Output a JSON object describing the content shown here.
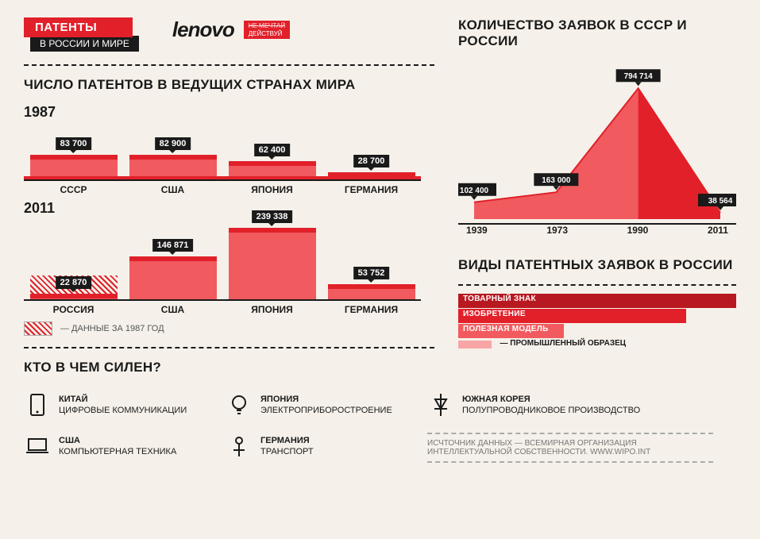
{
  "header": {
    "badge_top": "ПАТЕНТЫ",
    "badge_bottom": "В РОССИИ И МИРЕ",
    "logo": "lenovo",
    "tagline_top": "НЕ МЕЧТАЙ",
    "tagline_bottom": "ДЕЙСТВУЙ"
  },
  "colors": {
    "accent": "#e1202a",
    "accent_light": "#f15a5e",
    "ink": "#1a1a1a",
    "bg": "#f5f1ea"
  },
  "patents_chart": {
    "title": "ЧИСЛО ПАТЕНТОВ В ВЕДУЩИХ СТРАНАХ МИРА",
    "year_a": "1987",
    "year_b": "2011",
    "categories_a": [
      "СССР",
      "США",
      "ЯПОНИЯ",
      "ГЕРМАНИЯ"
    ],
    "categories_b": [
      "РОССИЯ",
      "США",
      "ЯПОНИЯ",
      "ГЕРМАНИЯ"
    ],
    "values_a": [
      83700,
      82900,
      62400,
      28700
    ],
    "values_b": [
      22870,
      146871,
      239338,
      53752
    ],
    "labels_a": [
      "83 700",
      "82 900",
      "62 400",
      "28 700"
    ],
    "labels_b": [
      "22 870",
      "146 871",
      "239 338",
      "53 752"
    ],
    "max_a": 100000,
    "max_b": 260000,
    "bar_width_pct": 22,
    "legend_text": "— ДАННЫЕ ЗА 1987 ГОД"
  },
  "applications_chart": {
    "title": "КОЛИЧЕСТВО ЗАЯВОК В СССР И РОССИИ",
    "years": [
      "1939",
      "1973",
      "1990",
      "2011"
    ],
    "values": [
      102400,
      163000,
      794714,
      38564
    ],
    "labels": [
      "102 400",
      "163 000",
      "794 714",
      "38 564"
    ],
    "max": 820000,
    "fill_colors": [
      "#f15a5e",
      "#e1202a"
    ]
  },
  "types": {
    "title": "ВИДЫ ПАТЕНТНЫХ ЗАЯВОК В РОССИИ",
    "items": [
      {
        "label": "ТОВАРНЫЙ ЗНАК",
        "width_pct": 100,
        "color": "#b81820"
      },
      {
        "label": "ИЗОБРЕТЕНИЕ",
        "width_pct": 82,
        "color": "#e1202a"
      },
      {
        "label": "ПОЛЕЗНАЯ МОДЕЛЬ",
        "width_pct": 38,
        "color": "#f15a5e"
      }
    ],
    "tiny": {
      "label": "ПРОМЫШЛЕННЫЙ ОБРАЗЕЦ",
      "width_pct": 12
    }
  },
  "strengths": {
    "title": "КТО В ЧЕМ СИЛЕН?",
    "items": [
      {
        "country": "КИТАЙ",
        "field": "ЦИФРОВЫЕ КОММУНИКАЦИИ",
        "icon": "phone"
      },
      {
        "country": "ЯПОНИЯ",
        "field": "ЭЛЕКТРОПРИБОРОСТРОЕНИЕ",
        "icon": "bulb"
      },
      {
        "country": "ЮЖНАЯ КОРЕЯ",
        "field": "ПОЛУПРОВОДНИКОВОЕ ПРОИЗВОДСТВО",
        "icon": "diode"
      },
      {
        "country": "США",
        "field": "КОМПЬЮТЕРНАЯ ТЕХНИКА",
        "icon": "laptop"
      },
      {
        "country": "ГЕРМАНИЯ",
        "field": "ТРАНСПОРТ",
        "icon": "transport"
      }
    ]
  },
  "source": {
    "text": "ИСЧТОЧНИК ДАННЫХ — ВСЕМИРНАЯ ОРГАНИЗАЦИЯ ИНТЕЛЛЕКТУАЛЬНОЙ СОБСТВЕННОСТИ.  WWW.WIPO.INT"
  }
}
